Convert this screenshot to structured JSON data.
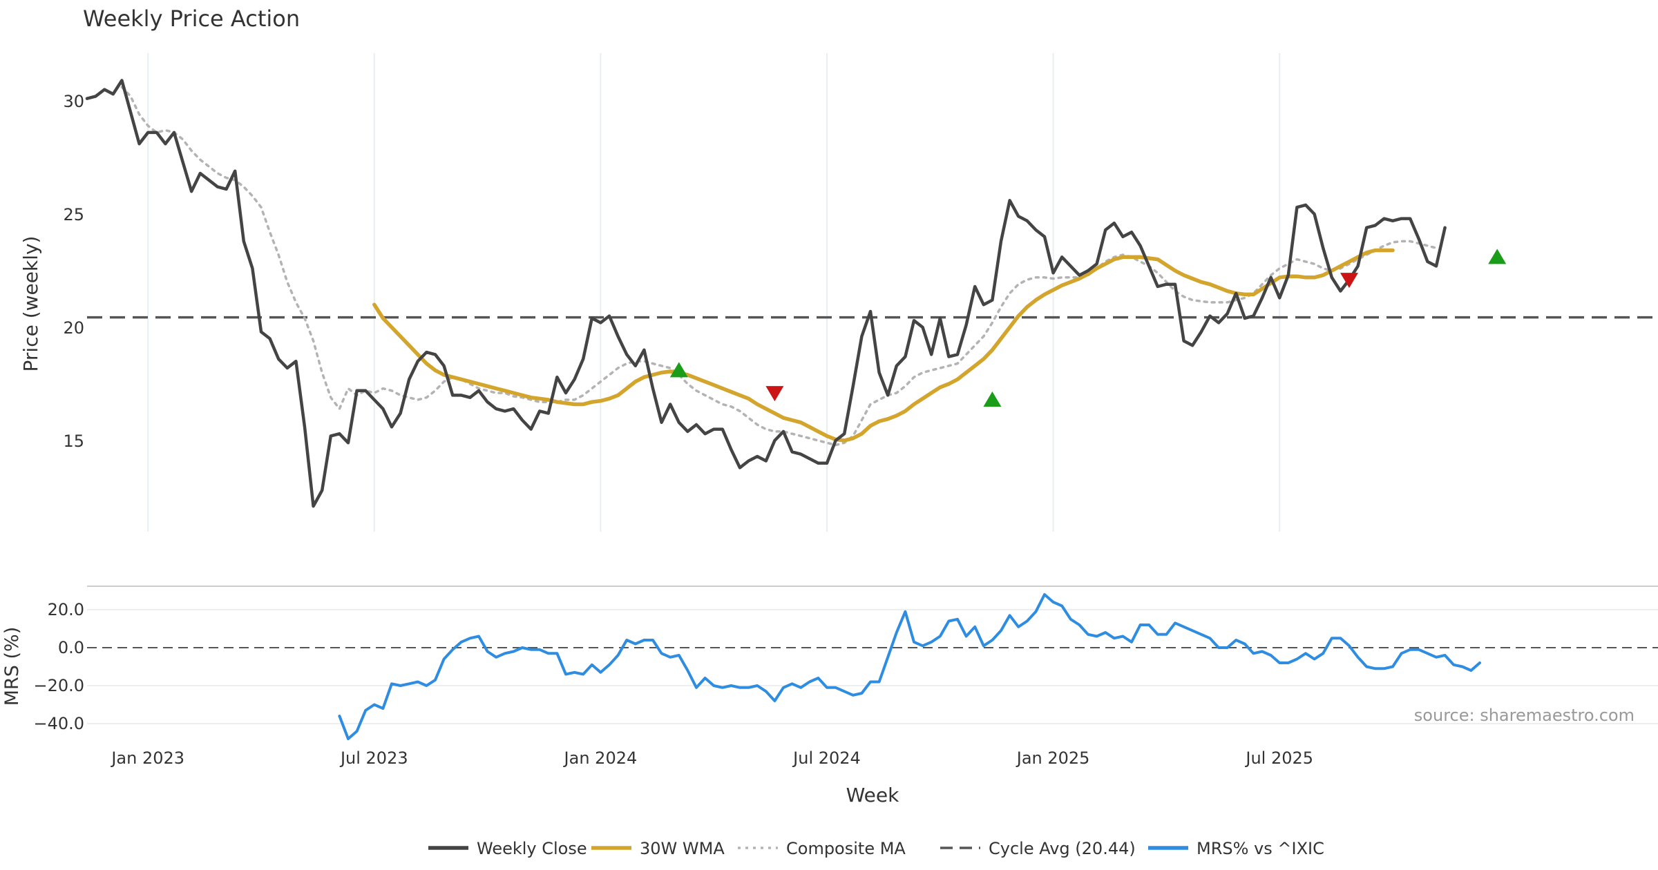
{
  "chart_data": {
    "type": "line",
    "title": "Weekly Price Action",
    "xlabel": "Week",
    "source": "source: sharemaestro.com",
    "x_ticks": [
      "Jan 2023",
      "Jul 2023",
      "Jan 2024",
      "Jul 2024",
      "Jan 2025",
      "Jul 2025"
    ],
    "x_range_weeks": [
      0,
      180
    ],
    "price_panel": {
      "ylabel": "Price (weekly)",
      "ylim": [
        11,
        32
      ],
      "yticks": [
        "15",
        "20",
        "25",
        "30"
      ],
      "cycle_avg": 20.44,
      "series": [
        {
          "name": "Weekly Close",
          "color": "#444444",
          "values": [
            30.1,
            30.2,
            30.5,
            30.3,
            30.9,
            29.5,
            28.1,
            28.6,
            28.6,
            28.1,
            28.6,
            27.3,
            26.0,
            26.8,
            26.5,
            26.2,
            26.1,
            26.9,
            23.8,
            22.6,
            19.8,
            19.5,
            18.6,
            18.2,
            18.5,
            15.6,
            12.1,
            12.8,
            15.2,
            15.3,
            14.9,
            17.2,
            17.2,
            16.8,
            16.4,
            15.6,
            16.2,
            17.7,
            18.5,
            18.9,
            18.8,
            18.3,
            17.0,
            17.0,
            16.9,
            17.2,
            16.7,
            16.4,
            16.3,
            16.4,
            15.9,
            15.5,
            16.3,
            16.2,
            17.8,
            17.1,
            17.7,
            18.6,
            20.4,
            20.2,
            20.5,
            19.6,
            18.8,
            18.3,
            19.0,
            17.3,
            15.8,
            16.6,
            15.8,
            15.4,
            15.7,
            15.3,
            15.5,
            15.5,
            14.6,
            13.8,
            14.1,
            14.3,
            14.1,
            15.0,
            15.4,
            14.5,
            14.4,
            14.2,
            14.0,
            14.0,
            15.0,
            15.3,
            17.4,
            19.6,
            20.7,
            18.0,
            17.0,
            18.3,
            18.7,
            20.3,
            20.0,
            18.8,
            20.4,
            18.7,
            18.8,
            20.1,
            21.8,
            21.0,
            21.2,
            23.8,
            25.6,
            24.9,
            24.7,
            24.3,
            24.0,
            22.4,
            23.1,
            22.7,
            22.3,
            22.5,
            22.8,
            24.3,
            24.6,
            24.0,
            24.2,
            23.6,
            22.7,
            21.8,
            21.9,
            21.9,
            19.4,
            19.2,
            19.8,
            20.5,
            20.2,
            20.6,
            21.5,
            20.4,
            20.5,
            21.3,
            22.2,
            21.3,
            22.3,
            25.3,
            25.4,
            25.0,
            23.5,
            22.2,
            21.6,
            22.1,
            22.7,
            24.4,
            24.5,
            24.8,
            24.7,
            24.8,
            24.8,
            23.9,
            22.9,
            22.7,
            24.4
          ]
        },
        {
          "name": "30W WMA",
          "color": "#d4a52c",
          "start_week": 33,
          "values": [
            21.0,
            20.4,
            20.0,
            19.6,
            19.2,
            18.8,
            18.4,
            18.1,
            17.9,
            17.8,
            17.7,
            17.6,
            17.5,
            17.4,
            17.3,
            17.2,
            17.1,
            17.0,
            16.9,
            16.85,
            16.8,
            16.7,
            16.65,
            16.6,
            16.6,
            16.7,
            16.75,
            16.85,
            17.0,
            17.3,
            17.6,
            17.8,
            17.9,
            18.0,
            18.05,
            18.0,
            17.9,
            17.75,
            17.6,
            17.45,
            17.3,
            17.15,
            17.0,
            16.85,
            16.6,
            16.4,
            16.2,
            16.0,
            15.9,
            15.8,
            15.6,
            15.4,
            15.2,
            15.05,
            15.0,
            15.1,
            15.3,
            15.65,
            15.85,
            15.95,
            16.1,
            16.3,
            16.6,
            16.85,
            17.1,
            17.35,
            17.5,
            17.7,
            18.0,
            18.3,
            18.6,
            19.0,
            19.5,
            20.0,
            20.5,
            20.9,
            21.2,
            21.45,
            21.65,
            21.85,
            22.0,
            22.15,
            22.35,
            22.6,
            22.8,
            23.0,
            23.1,
            23.1,
            23.1,
            23.05,
            23.0,
            22.75,
            22.5,
            22.3,
            22.15,
            22.0,
            21.9,
            21.75,
            21.6,
            21.5,
            21.45,
            21.45,
            21.7,
            21.95,
            22.2,
            22.25,
            22.25,
            22.2,
            22.2,
            22.3,
            22.5,
            22.7,
            22.9,
            23.1,
            23.3,
            23.4,
            23.4,
            23.4
          ]
        },
        {
          "name": "Composite MA",
          "color": "#b3b3b3",
          "start_week": 4,
          "values": [
            30.6,
            30.2,
            29.4,
            28.9,
            28.6,
            28.7,
            28.6,
            28.3,
            27.8,
            27.4,
            27.1,
            26.8,
            26.6,
            26.5,
            26.2,
            25.8,
            25.3,
            24.2,
            23.2,
            22.0,
            21.1,
            20.4,
            19.4,
            18.0,
            16.9,
            16.4,
            17.3,
            17.0,
            17.2,
            17.1,
            17.3,
            17.2,
            17.0,
            16.9,
            16.8,
            16.9,
            17.2,
            17.6,
            17.8,
            17.7,
            17.5,
            17.3,
            17.2,
            17.1,
            17.1,
            16.95,
            16.9,
            16.8,
            16.7,
            16.7,
            16.7,
            16.8,
            16.8,
            17.0,
            17.3,
            17.6,
            17.9,
            18.2,
            18.4,
            18.5,
            18.5,
            18.4,
            18.3,
            18.2,
            17.9,
            17.5,
            17.2,
            17.0,
            16.8,
            16.6,
            16.5,
            16.3,
            16.0,
            15.7,
            15.5,
            15.4,
            15.4,
            15.3,
            15.2,
            15.1,
            15.0,
            14.9,
            14.8,
            14.9,
            15.2,
            15.9,
            16.6,
            16.8,
            17.0,
            17.1,
            17.4,
            17.8,
            18.0,
            18.1,
            18.2,
            18.3,
            18.4,
            18.8,
            19.2,
            19.6,
            20.2,
            20.9,
            21.5,
            21.9,
            22.1,
            22.2,
            22.2,
            22.15,
            22.2,
            22.2,
            22.2,
            22.3,
            22.6,
            22.9,
            23.1,
            23.2,
            23.1,
            22.9,
            22.7,
            22.4,
            22.0,
            21.6,
            21.35,
            21.2,
            21.15,
            21.1,
            21.1,
            21.1,
            21.2,
            21.3,
            21.5,
            21.9,
            22.3,
            22.6,
            22.8,
            23.0,
            22.9,
            22.8,
            22.6,
            22.5,
            22.6,
            22.8,
            23.0,
            23.2,
            23.4,
            23.6,
            23.75,
            23.8,
            23.8,
            23.7,
            23.6,
            23.5
          ]
        }
      ],
      "signals": [
        {
          "type": "buy",
          "week": 68,
          "price": 18.1
        },
        {
          "type": "sell",
          "week": 79,
          "price": 17.1
        },
        {
          "type": "buy",
          "week": 104,
          "price": 16.8
        },
        {
          "type": "sell",
          "week": 145,
          "price": 22.1
        },
        {
          "type": "buy",
          "week": 162,
          "price": 23.1
        }
      ]
    },
    "mrs_panel": {
      "ylabel": "MRS (%)",
      "ylim": [
        -50,
        32
      ],
      "yticks": [
        "20.0",
        "0.0",
        "−20.0",
        "−40.0"
      ],
      "zero_line": 0,
      "series": {
        "name": "MRS% vs ^IXIC",
        "color": "#2e8de0",
        "start_week": 29,
        "values": [
          -36,
          -48,
          -44,
          -33,
          -30,
          -32,
          -19,
          -20,
          -19,
          -18,
          -20,
          -17,
          -6,
          -1,
          3,
          5,
          6,
          -2,
          -5,
          -3,
          -2,
          0,
          -1,
          -1,
          -3,
          -3,
          -14,
          -13,
          -14,
          -9,
          -13,
          -9,
          -4,
          4,
          2,
          4,
          4,
          -3,
          -5,
          -4,
          -12,
          -21,
          -16,
          -20,
          -21,
          -20,
          -21,
          -21,
          -20,
          -23,
          -28,
          -21,
          -19,
          -21,
          -18,
          -16,
          -21,
          -21,
          -23,
          -25,
          -24,
          -18,
          -18,
          -5,
          8,
          19,
          3,
          1,
          3,
          6,
          14,
          15,
          6,
          11,
          1,
          4,
          9,
          17,
          11,
          14,
          19,
          28,
          24,
          22,
          15,
          12,
          7,
          6,
          8,
          5,
          6,
          3,
          12,
          12,
          7,
          7,
          13,
          11,
          9,
          7,
          5,
          0,
          0,
          4,
          2,
          -3,
          -2,
          -4,
          -8,
          -8,
          -6,
          -3,
          -6,
          -3,
          5,
          5,
          1,
          -5,
          -10,
          -11,
          -11,
          -10,
          -3,
          -1,
          -1,
          -3,
          -5,
          -4,
          -9,
          -10,
          -12,
          -8
        ]
      }
    },
    "legend": {
      "placement": "bottom-center",
      "items": [
        {
          "label": "Weekly Close",
          "style": "solid",
          "color": "#444444"
        },
        {
          "label": "30W WMA",
          "style": "solid",
          "color": "#d4a52c"
        },
        {
          "label": "Composite MA",
          "style": "dotted",
          "color": "#b3b3b3"
        },
        {
          "label": "Cycle Avg (20.44)",
          "style": "dashed",
          "color": "#555555"
        },
        {
          "label": "MRS% vs ^IXIC",
          "style": "solid",
          "color": "#2e8de0"
        }
      ]
    }
  }
}
